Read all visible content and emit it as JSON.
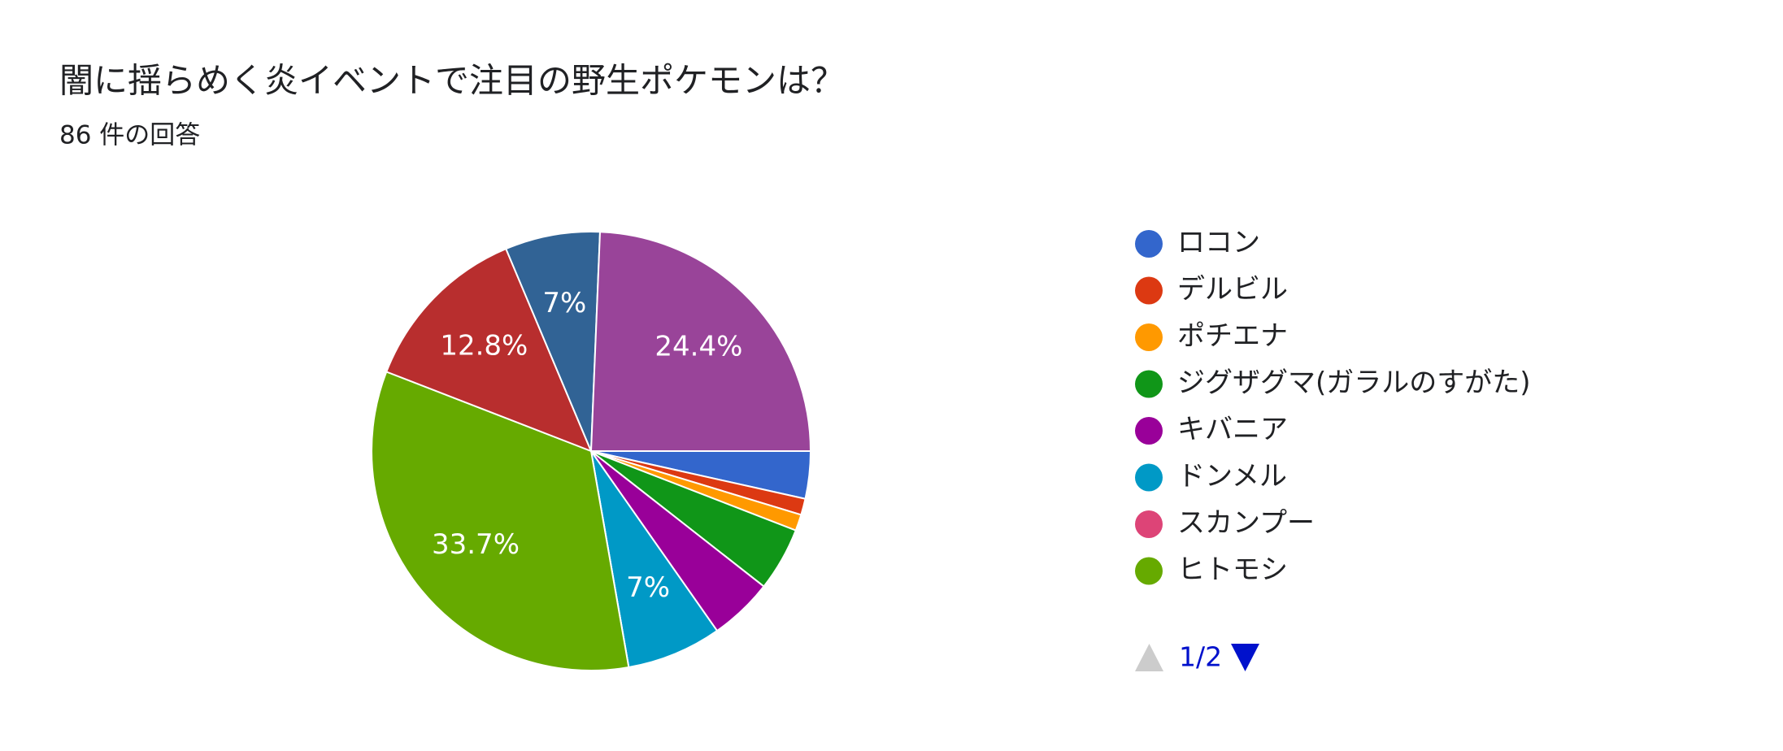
{
  "chart_data": {
    "type": "pie",
    "title": "闇に揺らめく炎イベントで注目の野生ポケモンは？",
    "subtitle": "86 件の回答",
    "categories": [
      "ロコン",
      "デルビル",
      "ポチエナ",
      "ジグザグマ(ガラルのすがた)",
      "キバニア",
      "ドンメル",
      "スカンプー",
      "ヒトモシ",
      null,
      null,
      null
    ],
    "values": [
      3.5,
      1.2,
      1.2,
      4.7,
      4.7,
      7,
      0,
      33.7,
      12.8,
      7,
      24.4
    ],
    "value_labels": [
      null,
      null,
      null,
      null,
      null,
      "7%",
      null,
      "33.7%",
      "12.8%",
      "7%",
      "24.4%"
    ],
    "colors": [
      "#3366cc",
      "#dc3912",
      "#ff9900",
      "#109618",
      "#990099",
      "#0099c6",
      "#dd4477",
      "#66aa00",
      "#b82e2e",
      "#316395",
      "#994499"
    ],
    "legend": "right",
    "legend_page": "1/2"
  }
}
